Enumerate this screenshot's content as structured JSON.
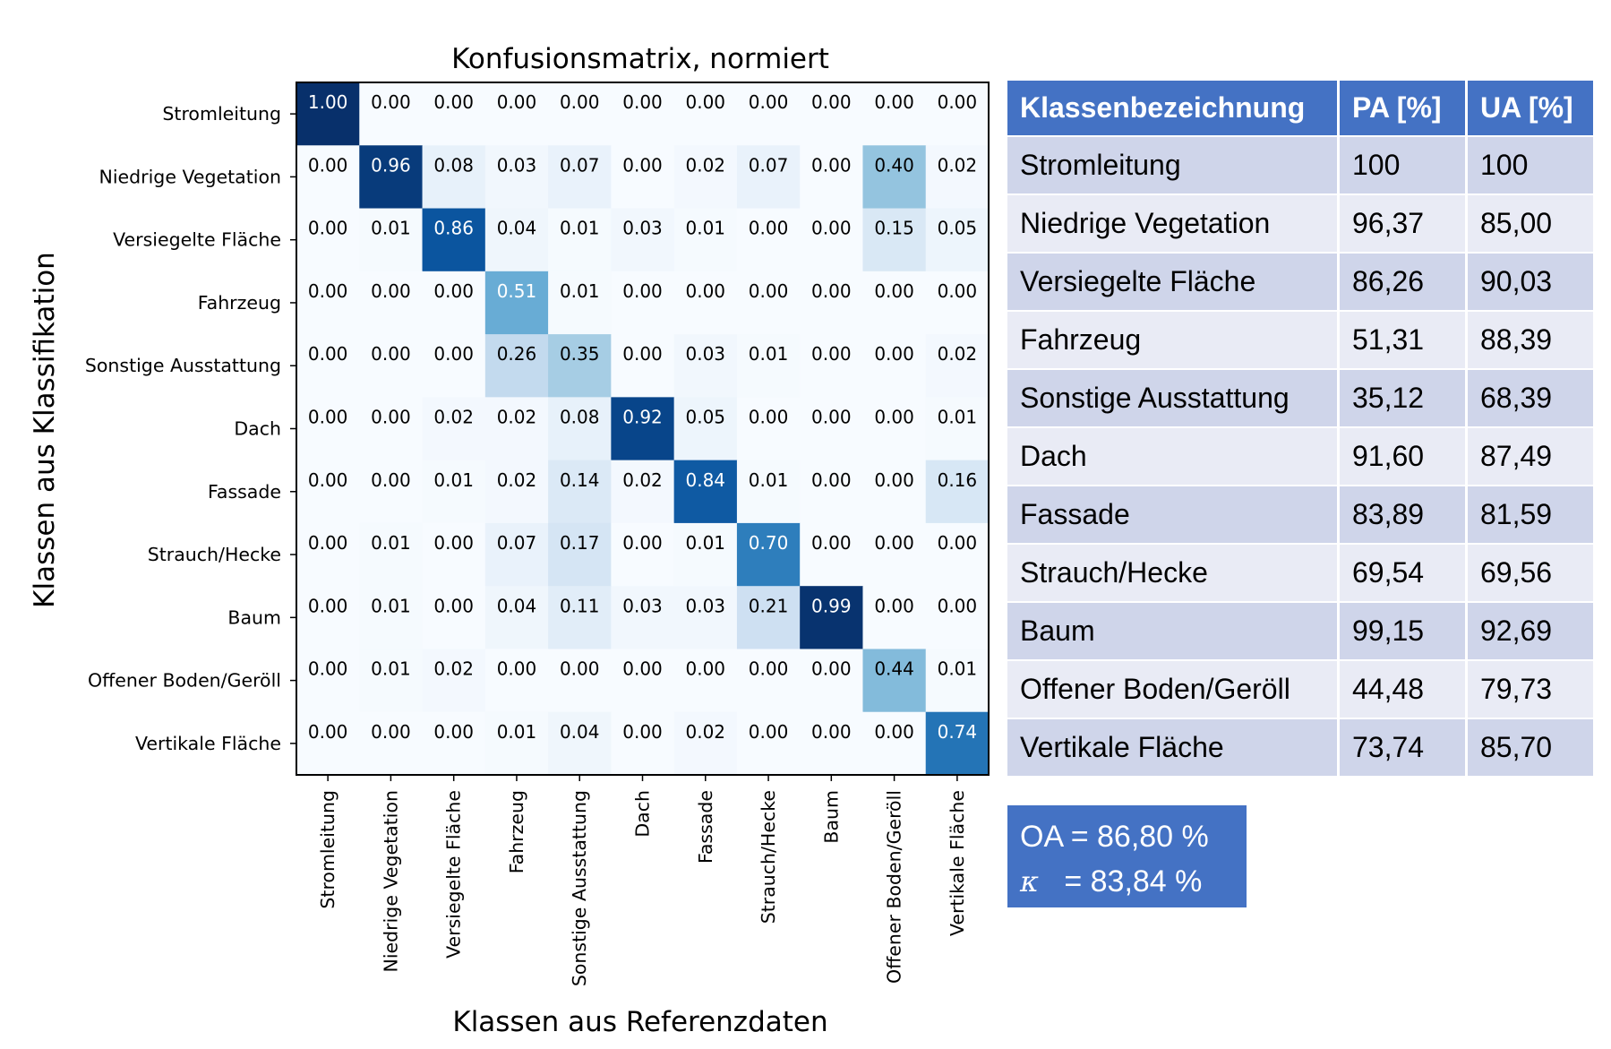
{
  "chart_data": {
    "type": "heatmap",
    "title": "Konfusionsmatrix, normiert",
    "xlabel": "Klassen aus Referenzdaten",
    "ylabel": "Klassen aus Klassifikation",
    "colormap": "Blues",
    "value_range": [
      0,
      1
    ],
    "row_labels": [
      "Stromleitung",
      "Niedrige Vegetation",
      "Versiegelte Fläche",
      "Fahrzeug",
      "Sonstige Ausstattung",
      "Dach",
      "Fassade",
      "Strauch/Hecke",
      "Baum",
      "Offener Boden/Geröll",
      "Vertikale Fläche"
    ],
    "col_labels": [
      "Stromleitung",
      "Niedrige Vegetation",
      "Versiegelte Fläche",
      "Fahrzeug",
      "Sonstige Ausstattung",
      "Dach",
      "Fassade",
      "Strauch/Hecke",
      "Baum",
      "Offener Boden/Geröll",
      "Vertikale Fläche"
    ],
    "values": [
      [
        1.0,
        0.0,
        0.0,
        0.0,
        0.0,
        0.0,
        0.0,
        0.0,
        0.0,
        0.0,
        0.0
      ],
      [
        0.0,
        0.96,
        0.08,
        0.03,
        0.07,
        0.0,
        0.02,
        0.07,
        0.0,
        0.4,
        0.02
      ],
      [
        0.0,
        0.01,
        0.86,
        0.04,
        0.01,
        0.03,
        0.01,
        0.0,
        0.0,
        0.15,
        0.05
      ],
      [
        0.0,
        0.0,
        0.0,
        0.51,
        0.01,
        0.0,
        0.0,
        0.0,
        0.0,
        0.0,
        0.0
      ],
      [
        0.0,
        0.0,
        0.0,
        0.26,
        0.35,
        0.0,
        0.03,
        0.01,
        0.0,
        0.0,
        0.02
      ],
      [
        0.0,
        0.0,
        0.02,
        0.02,
        0.08,
        0.92,
        0.05,
        0.0,
        0.0,
        0.0,
        0.01
      ],
      [
        0.0,
        0.0,
        0.01,
        0.02,
        0.14,
        0.02,
        0.84,
        0.01,
        0.0,
        0.0,
        0.16
      ],
      [
        0.0,
        0.01,
        0.0,
        0.07,
        0.17,
        0.0,
        0.01,
        0.7,
        0.0,
        0.0,
        0.0
      ],
      [
        0.0,
        0.01,
        0.0,
        0.04,
        0.11,
        0.03,
        0.03,
        0.21,
        0.99,
        0.0,
        0.0
      ],
      [
        0.0,
        0.01,
        0.02,
        0.0,
        0.0,
        0.0,
        0.0,
        0.0,
        0.0,
        0.44,
        0.01
      ],
      [
        0.0,
        0.0,
        0.0,
        0.01,
        0.04,
        0.0,
        0.02,
        0.0,
        0.0,
        0.0,
        0.74
      ]
    ]
  },
  "accuracy_table": {
    "headers": [
      "Klassenbezeichnung",
      "PA [%]",
      "UA [%]"
    ],
    "rows": [
      [
        "Stromleitung",
        "100",
        "100"
      ],
      [
        "Niedrige Vegetation",
        "96,37",
        "85,00"
      ],
      [
        "Versiegelte Fläche",
        "86,26",
        "90,03"
      ],
      [
        "Fahrzeug",
        "51,31",
        "88,39"
      ],
      [
        "Sonstige Ausstattung",
        "35,12",
        "68,39"
      ],
      [
        "Dach",
        "91,60",
        "87,49"
      ],
      [
        "Fassade",
        "83,89",
        "81,59"
      ],
      [
        "Strauch/Hecke",
        "69,54",
        "69,56"
      ],
      [
        "Baum",
        "99,15",
        "92,69"
      ],
      [
        "Offener Boden/Geröll",
        "44,48",
        "79,73"
      ],
      [
        "Vertikale Fläche",
        "73,74",
        "85,70"
      ]
    ]
  },
  "summary": {
    "oa_text": "OA = 86,80 %",
    "kappa_symbol": "κ",
    "kappa_text": "   = 83,84 %"
  },
  "colors": {
    "table_header": "#4472c4",
    "table_row_odd": "#cfd5ea",
    "table_row_even": "#e9ebf5",
    "summary_box": "#4472c4"
  }
}
